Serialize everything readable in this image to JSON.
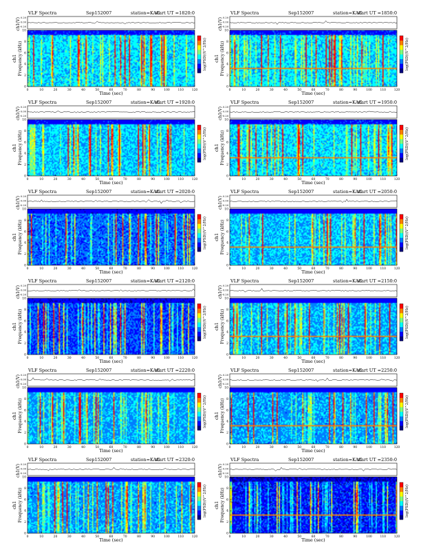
{
  "figure": {
    "panels": [
      {
        "title": "VLF Spectra",
        "date": "Sep152007",
        "station": "station=KAG",
        "start": "start UT =1820:0"
      },
      {
        "title": "VLF Spectra",
        "date": "Sep152007",
        "station": "station=KAG",
        "start": "start UT =1850:0"
      },
      {
        "title": "VLF Spectra",
        "date": "Sep152007",
        "station": "station=KAG",
        "start": "start UT =1920:0"
      },
      {
        "title": "VLF Spectra",
        "date": "Sep152007",
        "station": "station=KAG",
        "start": "start UT =1950:0"
      },
      {
        "title": "VLF Spectra",
        "date": "Sep152007",
        "station": "station=KAG",
        "start": "start UT =2020:0"
      },
      {
        "title": "VLF Spectra",
        "date": "Sep152007",
        "station": "station=KAG",
        "start": "start UT =2050:0"
      },
      {
        "title": "VLF Spectra",
        "date": "Sep152007",
        "station": "station=KAG",
        "start": "start UT =2120:0"
      },
      {
        "title": "VLF Spectra",
        "date": "Sep152007",
        "station": "station=KAG",
        "start": "start UT =2150:0"
      },
      {
        "title": "VLF Spectra",
        "date": "Sep152007",
        "station": "station=KAG",
        "start": "start UT =2220:0"
      },
      {
        "title": "VLF Spectra",
        "date": "Sep152007",
        "station": "station=KAG",
        "start": "start UT =2250:0"
      },
      {
        "title": "VLF Spectra",
        "date": "Sep152007",
        "station": "station=KAG",
        "start": "start UT =2320:0"
      },
      {
        "title": "VLF Spectra",
        "date": "Sep152007",
        "station": "station=KAG",
        "start": "start UT =2350:0"
      }
    ]
  },
  "chart_data": {
    "type": "heatmap",
    "layout": "6 rows x 2 columns of spectrogram panels",
    "panel_titles": [
      "VLF Spectra",
      "Sep152007",
      "station=KAG"
    ],
    "start_times": [
      "1820:0",
      "1850:0",
      "1920:0",
      "1950:0",
      "2020:0",
      "2050:0",
      "2120:0",
      "2150:0",
      "2220:0",
      "2250:0",
      "2320:0",
      "2350:0"
    ],
    "xlabel": "Time (sec)",
    "xlim": [
      0,
      120
    ],
    "xticks": [
      0,
      10,
      20,
      30,
      40,
      50,
      60,
      70,
      80,
      90,
      100,
      110,
      120
    ],
    "ylabel": "Frequency (kHz)",
    "ylabel_prefix": "ch1",
    "ylim": [
      0,
      10
    ],
    "yticks": [
      0,
      2,
      4,
      6,
      8,
      10
    ],
    "timeseries_label": "ch1(V)",
    "timeseries_ticks": [
      "0.20",
      "0.00",
      "-0.20"
    ],
    "colorbar_label": "log(PSD)(V^2/Hz)",
    "colormap": [
      "#00007f",
      "#0000ff",
      "#007fff",
      "#00ffff",
      "#7fff7f",
      "#ffff00",
      "#ff7f00",
      "#ff0000"
    ],
    "background_level": [
      0.4,
      0.4,
      0.38,
      0.4,
      0.26,
      0.36,
      0.22,
      0.34,
      0.33,
      0.32,
      0.32,
      0.16
    ]
  }
}
